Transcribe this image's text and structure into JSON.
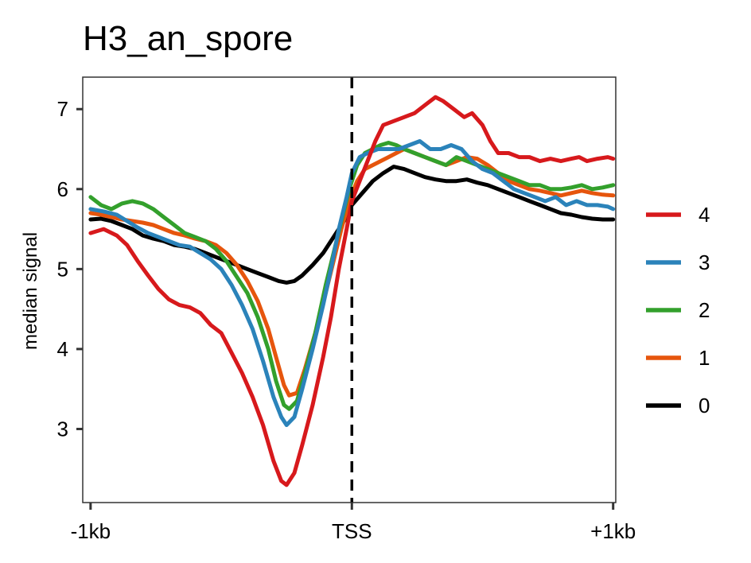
{
  "chart_data": {
    "type": "line",
    "title": "H3_an_spore",
    "xlabel": "",
    "ylabel": "median signal",
    "x_ticks": [
      {
        "value": -1000,
        "label": "-1kb"
      },
      {
        "value": 0,
        "label": "TSS"
      },
      {
        "value": 1000,
        "label": "+1kb"
      }
    ],
    "y_ticks": [
      3,
      4,
      5,
      6,
      7
    ],
    "xlim": [
      -1030,
      1010
    ],
    "ylim": [
      2.08,
      7.4
    ],
    "vline_x": 0,
    "grid": false,
    "legend_position": "right",
    "series": [
      {
        "name": "4",
        "color": "#d7191c",
        "points": [
          [
            -1000,
            5.45
          ],
          [
            -950,
            5.5
          ],
          [
            -900,
            5.42
          ],
          [
            -860,
            5.3
          ],
          [
            -820,
            5.1
          ],
          [
            -780,
            4.92
          ],
          [
            -740,
            4.75
          ],
          [
            -700,
            4.62
          ],
          [
            -660,
            4.55
          ],
          [
            -620,
            4.52
          ],
          [
            -580,
            4.45
          ],
          [
            -540,
            4.3
          ],
          [
            -500,
            4.2
          ],
          [
            -460,
            3.95
          ],
          [
            -420,
            3.7
          ],
          [
            -380,
            3.4
          ],
          [
            -340,
            3.05
          ],
          [
            -300,
            2.6
          ],
          [
            -270,
            2.35
          ],
          [
            -250,
            2.3
          ],
          [
            -220,
            2.45
          ],
          [
            -190,
            2.8
          ],
          [
            -150,
            3.3
          ],
          [
            -110,
            3.9
          ],
          [
            -80,
            4.4
          ],
          [
            -50,
            5.0
          ],
          [
            -20,
            5.5
          ],
          [
            0,
            5.85
          ],
          [
            30,
            6.1
          ],
          [
            60,
            6.35
          ],
          [
            90,
            6.6
          ],
          [
            120,
            6.8
          ],
          [
            160,
            6.85
          ],
          [
            200,
            6.9
          ],
          [
            240,
            6.95
          ],
          [
            280,
            7.05
          ],
          [
            320,
            7.15
          ],
          [
            350,
            7.1
          ],
          [
            390,
            7.0
          ],
          [
            430,
            6.9
          ],
          [
            460,
            6.95
          ],
          [
            500,
            6.8
          ],
          [
            530,
            6.6
          ],
          [
            560,
            6.45
          ],
          [
            600,
            6.45
          ],
          [
            640,
            6.4
          ],
          [
            680,
            6.4
          ],
          [
            720,
            6.35
          ],
          [
            760,
            6.38
          ],
          [
            800,
            6.35
          ],
          [
            840,
            6.38
          ],
          [
            870,
            6.4
          ],
          [
            900,
            6.35
          ],
          [
            940,
            6.38
          ],
          [
            980,
            6.4
          ],
          [
            1000,
            6.38
          ]
        ]
      },
      {
        "name": "3",
        "color": "#2b83ba",
        "points": [
          [
            -1000,
            5.75
          ],
          [
            -950,
            5.72
          ],
          [
            -900,
            5.68
          ],
          [
            -860,
            5.6
          ],
          [
            -820,
            5.52
          ],
          [
            -780,
            5.45
          ],
          [
            -740,
            5.4
          ],
          [
            -700,
            5.35
          ],
          [
            -660,
            5.3
          ],
          [
            -620,
            5.28
          ],
          [
            -580,
            5.2
          ],
          [
            -540,
            5.12
          ],
          [
            -500,
            5.0
          ],
          [
            -460,
            4.8
          ],
          [
            -420,
            4.55
          ],
          [
            -380,
            4.25
          ],
          [
            -340,
            3.85
          ],
          [
            -300,
            3.4
          ],
          [
            -270,
            3.15
          ],
          [
            -250,
            3.05
          ],
          [
            -220,
            3.15
          ],
          [
            -190,
            3.5
          ],
          [
            -150,
            4.0
          ],
          [
            -110,
            4.55
          ],
          [
            -80,
            5.0
          ],
          [
            -50,
            5.5
          ],
          [
            -20,
            5.9
          ],
          [
            0,
            6.2
          ],
          [
            30,
            6.4
          ],
          [
            60,
            6.45
          ],
          [
            100,
            6.5
          ],
          [
            140,
            6.5
          ],
          [
            180,
            6.5
          ],
          [
            220,
            6.55
          ],
          [
            260,
            6.6
          ],
          [
            300,
            6.5
          ],
          [
            340,
            6.5
          ],
          [
            380,
            6.55
          ],
          [
            420,
            6.5
          ],
          [
            460,
            6.35
          ],
          [
            500,
            6.25
          ],
          [
            540,
            6.2
          ],
          [
            580,
            6.1
          ],
          [
            620,
            6.0
          ],
          [
            660,
            5.95
          ],
          [
            700,
            5.9
          ],
          [
            740,
            5.85
          ],
          [
            780,
            5.9
          ],
          [
            820,
            5.8
          ],
          [
            860,
            5.85
          ],
          [
            900,
            5.8
          ],
          [
            940,
            5.8
          ],
          [
            980,
            5.78
          ],
          [
            1000,
            5.75
          ]
        ]
      },
      {
        "name": "2",
        "color": "#33a02c",
        "points": [
          [
            -1000,
            5.9
          ],
          [
            -960,
            5.8
          ],
          [
            -920,
            5.75
          ],
          [
            -880,
            5.82
          ],
          [
            -840,
            5.85
          ],
          [
            -800,
            5.82
          ],
          [
            -760,
            5.75
          ],
          [
            -720,
            5.65
          ],
          [
            -680,
            5.55
          ],
          [
            -640,
            5.45
          ],
          [
            -600,
            5.4
          ],
          [
            -560,
            5.35
          ],
          [
            -520,
            5.25
          ],
          [
            -480,
            5.1
          ],
          [
            -440,
            4.9
          ],
          [
            -400,
            4.7
          ],
          [
            -360,
            4.4
          ],
          [
            -320,
            4.0
          ],
          [
            -290,
            3.6
          ],
          [
            -260,
            3.3
          ],
          [
            -240,
            3.25
          ],
          [
            -210,
            3.35
          ],
          [
            -180,
            3.7
          ],
          [
            -140,
            4.2
          ],
          [
            -100,
            4.8
          ],
          [
            -70,
            5.2
          ],
          [
            -40,
            5.6
          ],
          [
            -10,
            6.0
          ],
          [
            20,
            6.3
          ],
          [
            50,
            6.45
          ],
          [
            80,
            6.5
          ],
          [
            110,
            6.55
          ],
          [
            140,
            6.58
          ],
          [
            170,
            6.55
          ],
          [
            200,
            6.5
          ],
          [
            240,
            6.45
          ],
          [
            280,
            6.4
          ],
          [
            320,
            6.35
          ],
          [
            360,
            6.3
          ],
          [
            400,
            6.4
          ],
          [
            440,
            6.35
          ],
          [
            480,
            6.3
          ],
          [
            520,
            6.25
          ],
          [
            560,
            6.2
          ],
          [
            600,
            6.15
          ],
          [
            640,
            6.1
          ],
          [
            680,
            6.05
          ],
          [
            720,
            6.05
          ],
          [
            760,
            6.0
          ],
          [
            800,
            6.0
          ],
          [
            840,
            6.02
          ],
          [
            880,
            6.05
          ],
          [
            920,
            6.0
          ],
          [
            960,
            6.02
          ],
          [
            1000,
            6.05
          ]
        ]
      },
      {
        "name": "1",
        "color": "#e6550d",
        "points": [
          [
            -1000,
            5.7
          ],
          [
            -960,
            5.68
          ],
          [
            -920,
            5.65
          ],
          [
            -880,
            5.62
          ],
          [
            -840,
            5.6
          ],
          [
            -800,
            5.58
          ],
          [
            -760,
            5.55
          ],
          [
            -720,
            5.5
          ],
          [
            -680,
            5.45
          ],
          [
            -640,
            5.42
          ],
          [
            -600,
            5.38
          ],
          [
            -560,
            5.35
          ],
          [
            -520,
            5.3
          ],
          [
            -480,
            5.2
          ],
          [
            -440,
            5.05
          ],
          [
            -400,
            4.85
          ],
          [
            -360,
            4.6
          ],
          [
            -320,
            4.25
          ],
          [
            -290,
            3.9
          ],
          [
            -260,
            3.55
          ],
          [
            -240,
            3.42
          ],
          [
            -210,
            3.45
          ],
          [
            -180,
            3.75
          ],
          [
            -140,
            4.2
          ],
          [
            -100,
            4.7
          ],
          [
            -70,
            5.1
          ],
          [
            -40,
            5.5
          ],
          [
            -10,
            5.85
          ],
          [
            20,
            6.1
          ],
          [
            50,
            6.25
          ],
          [
            80,
            6.3
          ],
          [
            110,
            6.35
          ],
          [
            140,
            6.4
          ],
          [
            170,
            6.45
          ],
          [
            200,
            6.5
          ],
          [
            240,
            6.45
          ],
          [
            280,
            6.4
          ],
          [
            320,
            6.35
          ],
          [
            360,
            6.3
          ],
          [
            400,
            6.35
          ],
          [
            440,
            6.4
          ],
          [
            480,
            6.38
          ],
          [
            520,
            6.3
          ],
          [
            560,
            6.2
          ],
          [
            600,
            6.1
          ],
          [
            640,
            6.05
          ],
          [
            680,
            6.0
          ],
          [
            720,
            5.98
          ],
          [
            760,
            5.95
          ],
          [
            800,
            5.92
          ],
          [
            840,
            5.95
          ],
          [
            880,
            5.98
          ],
          [
            920,
            5.95
          ],
          [
            960,
            5.93
          ],
          [
            1000,
            5.92
          ]
        ]
      },
      {
        "name": "0",
        "color": "#000000",
        "points": [
          [
            -1000,
            5.62
          ],
          [
            -960,
            5.63
          ],
          [
            -920,
            5.6
          ],
          [
            -880,
            5.55
          ],
          [
            -840,
            5.5
          ],
          [
            -800,
            5.42
          ],
          [
            -760,
            5.38
          ],
          [
            -720,
            5.35
          ],
          [
            -680,
            5.3
          ],
          [
            -640,
            5.28
          ],
          [
            -600,
            5.25
          ],
          [
            -560,
            5.2
          ],
          [
            -520,
            5.15
          ],
          [
            -480,
            5.1
          ],
          [
            -440,
            5.05
          ],
          [
            -400,
            5.0
          ],
          [
            -360,
            4.95
          ],
          [
            -320,
            4.9
          ],
          [
            -280,
            4.85
          ],
          [
            -250,
            4.83
          ],
          [
            -220,
            4.85
          ],
          [
            -190,
            4.92
          ],
          [
            -150,
            5.05
          ],
          [
            -110,
            5.2
          ],
          [
            -70,
            5.4
          ],
          [
            -30,
            5.6
          ],
          [
            0,
            5.8
          ],
          [
            40,
            5.95
          ],
          [
            80,
            6.1
          ],
          [
            120,
            6.2
          ],
          [
            160,
            6.28
          ],
          [
            200,
            6.25
          ],
          [
            240,
            6.2
          ],
          [
            280,
            6.15
          ],
          [
            320,
            6.12
          ],
          [
            360,
            6.1
          ],
          [
            400,
            6.1
          ],
          [
            440,
            6.12
          ],
          [
            480,
            6.08
          ],
          [
            520,
            6.05
          ],
          [
            560,
            6.0
          ],
          [
            600,
            5.95
          ],
          [
            640,
            5.9
          ],
          [
            680,
            5.85
          ],
          [
            720,
            5.8
          ],
          [
            760,
            5.75
          ],
          [
            800,
            5.7
          ],
          [
            840,
            5.68
          ],
          [
            880,
            5.65
          ],
          [
            920,
            5.63
          ],
          [
            960,
            5.62
          ],
          [
            1000,
            5.62
          ]
        ]
      }
    ],
    "legend_order": [
      "4",
      "3",
      "2",
      "1",
      "0"
    ]
  }
}
